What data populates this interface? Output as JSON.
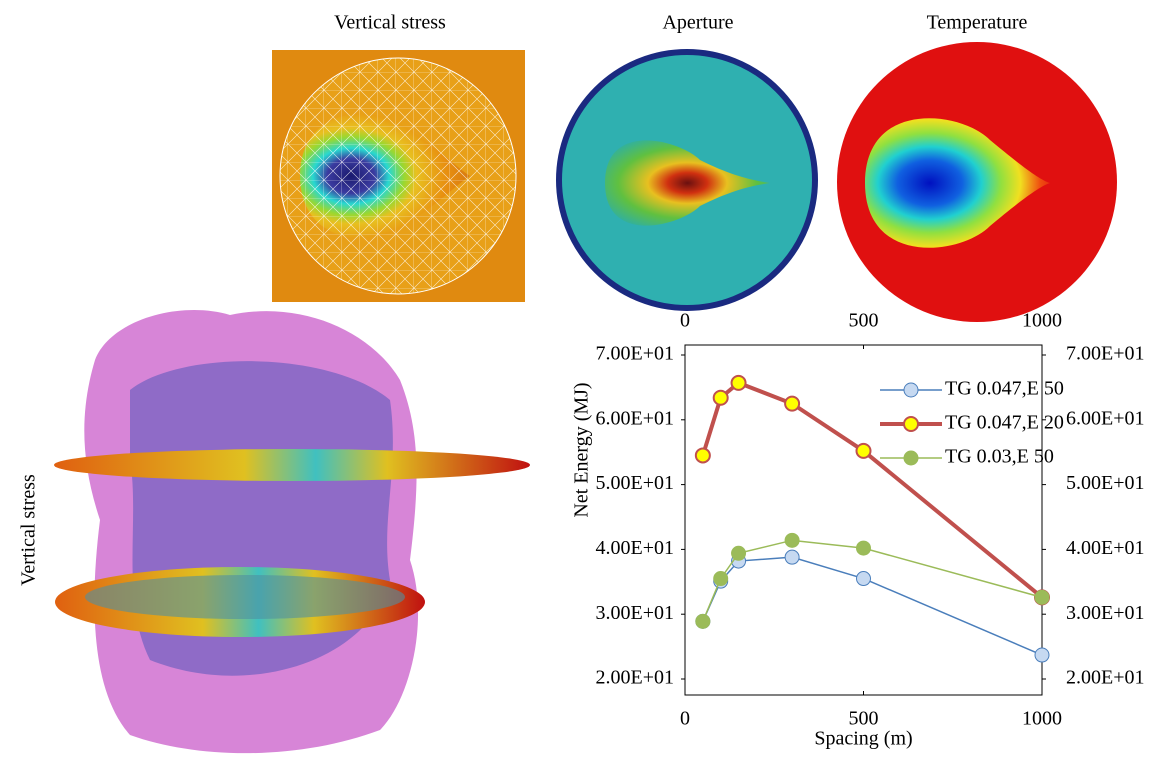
{
  "panels": [
    {
      "title": "Vertical stress"
    },
    {
      "title": "Aperture"
    },
    {
      "title": "Temperature"
    },
    {
      "title": "Vertical stress"
    }
  ],
  "chart_data": {
    "type": "line",
    "x_label": "Spacing (m)",
    "y_label": "Net Energy (MJ)",
    "x": [
      50,
      100,
      150,
      300,
      500,
      1000
    ],
    "series": [
      {
        "name": "TG 0.047,E 50",
        "color": "#4a7ebb",
        "marker_color": "#c6d9f1",
        "values": [
          28.9,
          35.1,
          38.2,
          38.8,
          35.5,
          23.7
        ]
      },
      {
        "name": "TG 0.047,E 20",
        "color": "#c0504d",
        "marker_color": "#ffff00",
        "values": [
          54.5,
          63.4,
          65.7,
          62.5,
          55.2,
          32.6
        ]
      },
      {
        "name": "TG 0.03,E 50",
        "color": "#9bbb59",
        "marker_color": "#9bbb59",
        "values": [
          28.9,
          35.5,
          39.4,
          41.4,
          40.2,
          32.6
        ]
      }
    ],
    "xlim": [
      0,
      1000
    ],
    "xticks": [
      0,
      500,
      1000
    ],
    "x2ticks": [
      0,
      500,
      1000
    ],
    "ylim": [
      20,
      70
    ],
    "yticks": [
      {
        "value": 20,
        "label": "2.00E+01"
      },
      {
        "value": 30,
        "label": "3.00E+01"
      },
      {
        "value": 40,
        "label": "4.00E+01"
      },
      {
        "value": 50,
        "label": "5.00E+01"
      },
      {
        "value": 60,
        "label": "6.00E+01"
      },
      {
        "value": 70,
        "label": "7.00E+01"
      }
    ],
    "y2lim": [
      20,
      70
    ],
    "y2ticks": [
      {
        "value": 20,
        "label": "2.00E+01"
      },
      {
        "value": 30,
        "label": "3.00E+01"
      },
      {
        "value": 40,
        "label": "4.00E+01"
      },
      {
        "value": 50,
        "label": "5.00E+01"
      },
      {
        "value": 60,
        "label": "6.00E+01"
      },
      {
        "value": 70,
        "label": "7.00E+01"
      }
    ],
    "legend": "top-right"
  }
}
